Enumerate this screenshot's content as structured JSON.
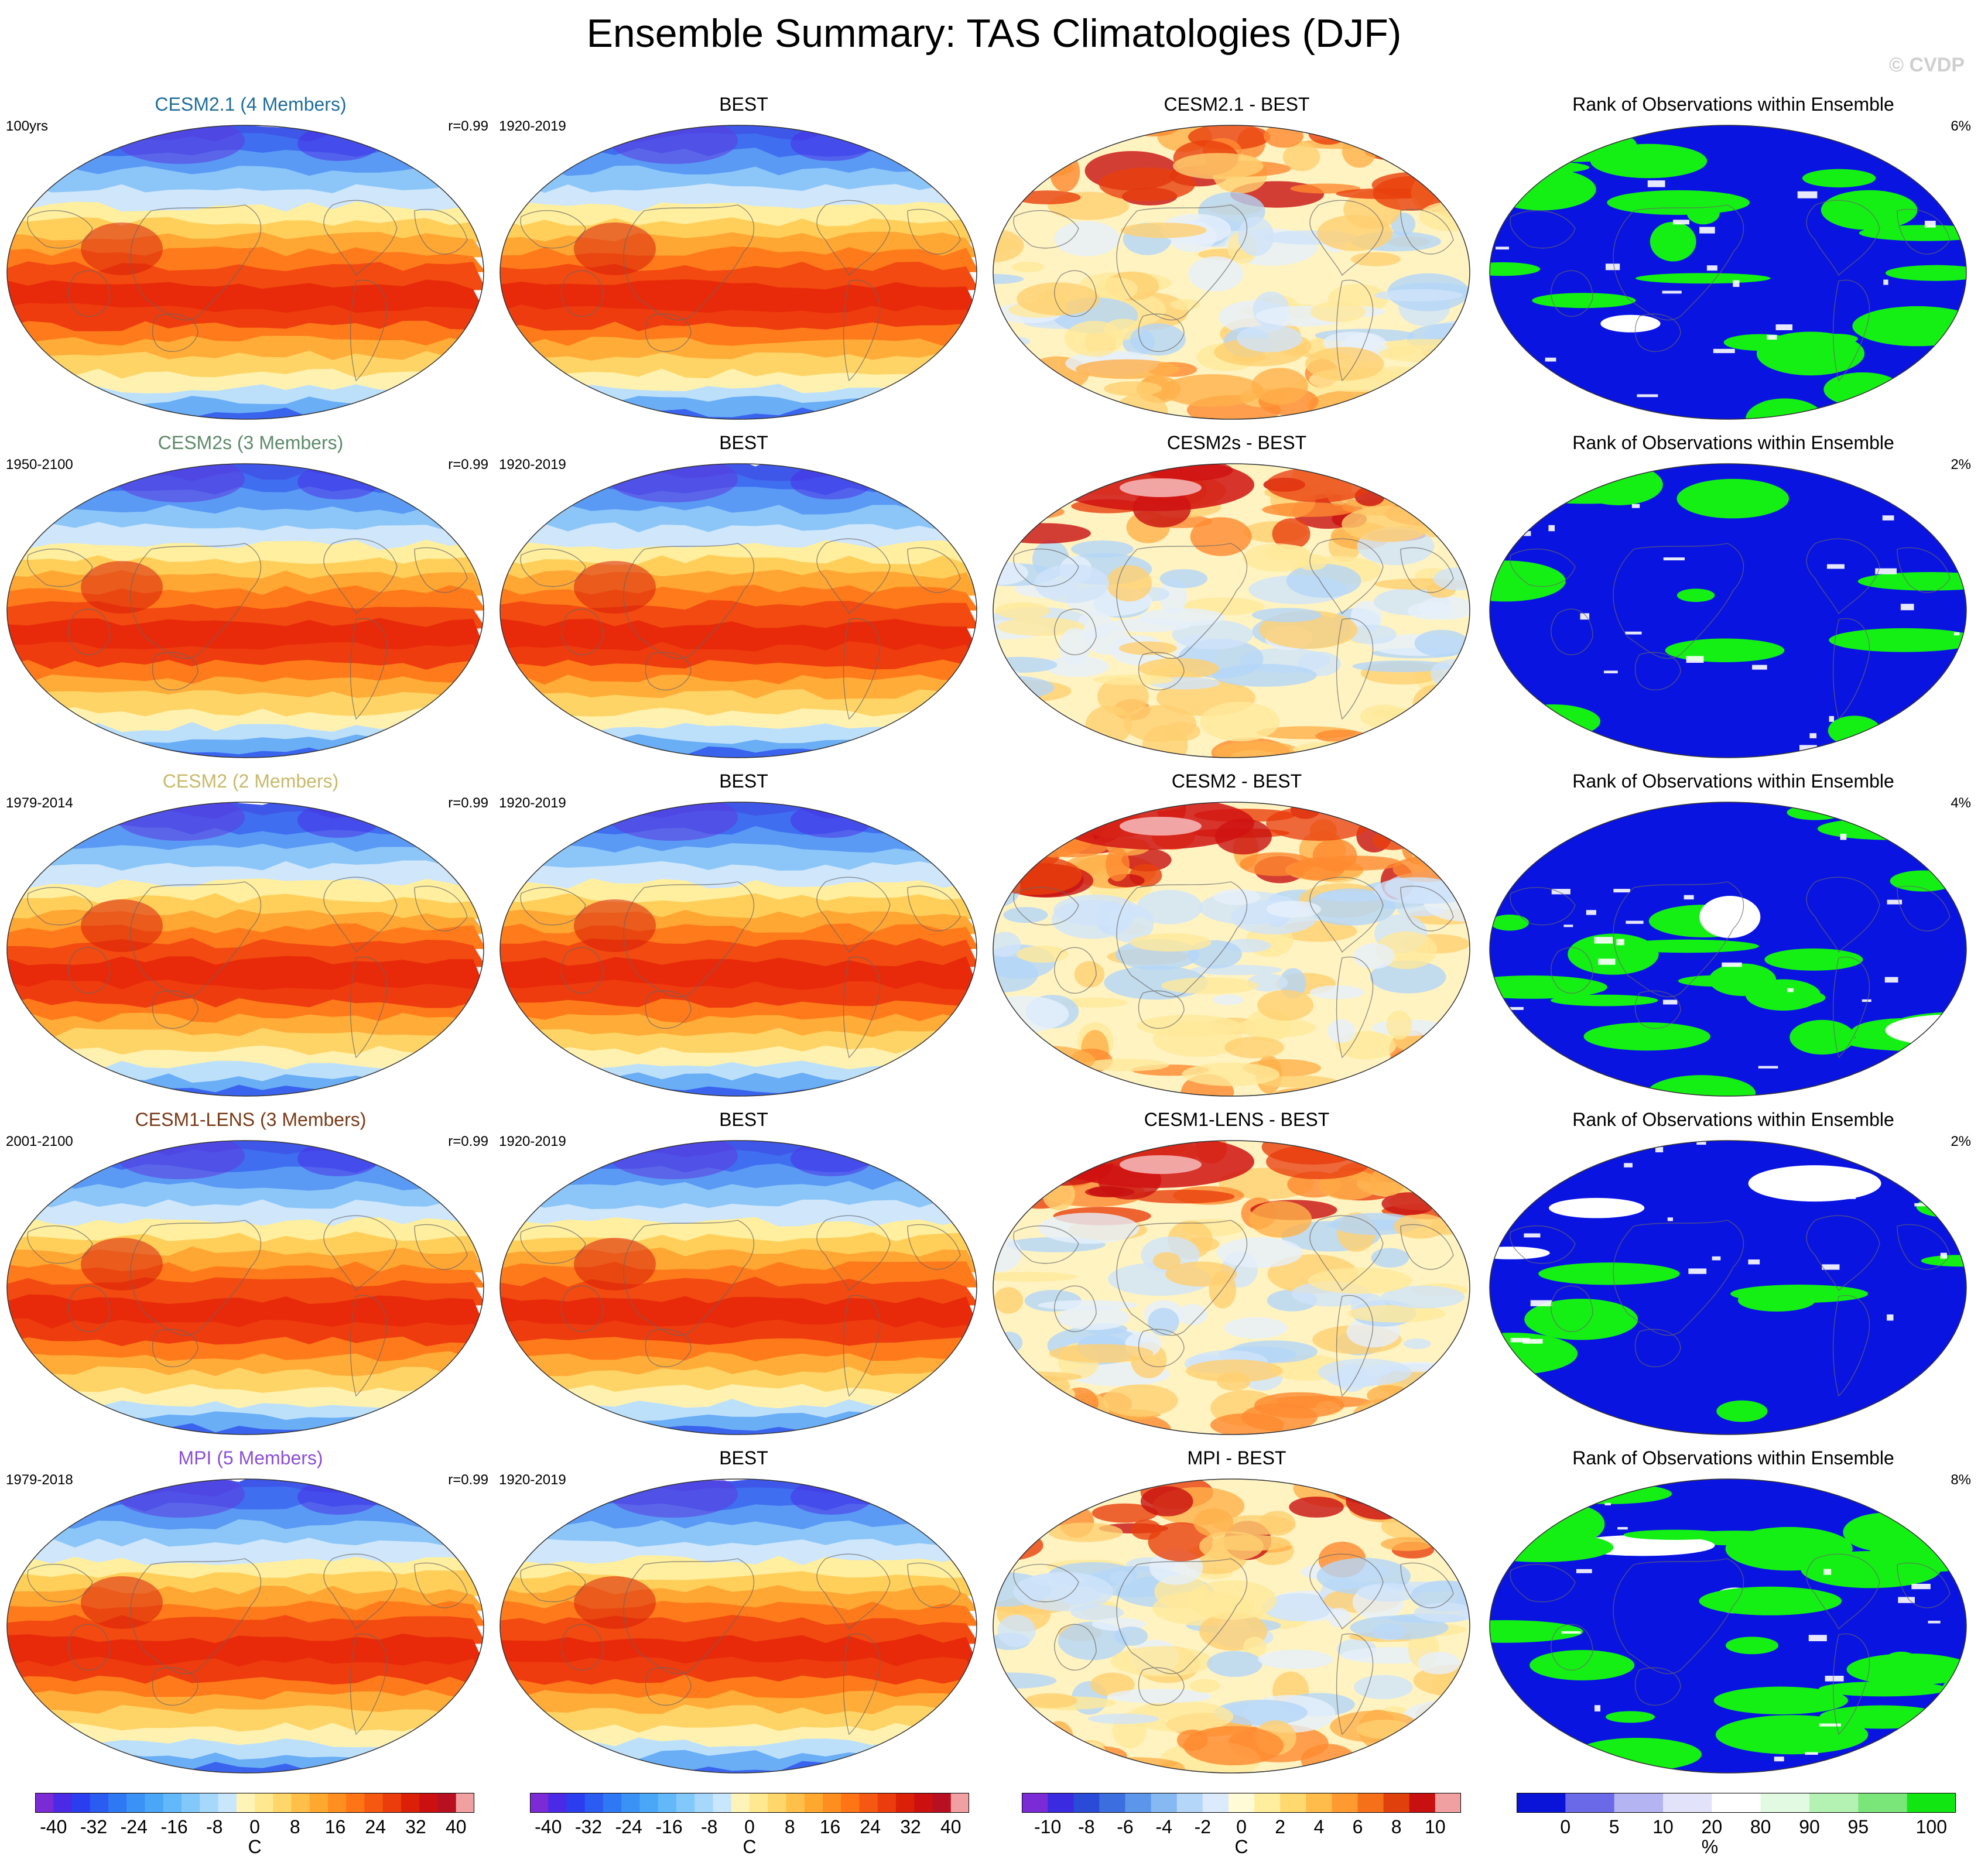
{
  "header": {
    "title": "Ensemble Summary: TAS Climatologies (DJF)",
    "copyright": "© CVDP"
  },
  "rows": [
    {
      "model_title": "CESM2.1 (4 Members)",
      "model_color": "#1f6e9a",
      "model_period": "100yrs",
      "r_value": "r=0.99",
      "obs_title": "BEST",
      "obs_period": "1920-2019",
      "diff_title": "CESM2.1 - BEST",
      "rank_title": "Rank of Observations within Ensemble",
      "rank_pct": "6%"
    },
    {
      "model_title": "CESM2s (3 Members)",
      "model_color": "#5d8a6a",
      "model_period": "1950-2100",
      "r_value": "r=0.99",
      "obs_title": "BEST",
      "obs_period": "1920-2019",
      "diff_title": "CESM2s - BEST",
      "rank_title": "Rank of Observations within Ensemble",
      "rank_pct": "2%"
    },
    {
      "model_title": "CESM2 (2 Members)",
      "model_color": "#c8b96a",
      "model_period": "1979-2014",
      "r_value": "r=0.99",
      "obs_title": "BEST",
      "obs_period": "1920-2019",
      "diff_title": "CESM2 - BEST",
      "rank_title": "Rank of Observations within Ensemble",
      "rank_pct": "4%"
    },
    {
      "model_title": "CESM1-LENS (3 Members)",
      "model_color": "#7a3a16",
      "model_period": "2001-2100",
      "r_value": "r=0.99",
      "obs_title": "BEST",
      "obs_period": "1920-2019",
      "diff_title": "CESM1-LENS - BEST",
      "rank_title": "Rank of Observations within Ensemble",
      "rank_pct": "2%"
    },
    {
      "model_title": "MPI (5 Members)",
      "model_color": "#8a4fd6",
      "model_period": "1979-2018",
      "r_value": "r=0.99",
      "obs_title": "BEST",
      "obs_period": "1920-2019",
      "diff_title": "MPI - BEST",
      "rank_title": "Rank of Observations within Ensemble",
      "rank_pct": "8%"
    }
  ],
  "colorbars": {
    "temperature": {
      "ticks": [
        "-40",
        "-32",
        "-24",
        "-16",
        "-8",
        "0",
        "8",
        "16",
        "24",
        "32",
        "40"
      ],
      "unit": "C",
      "colors": [
        "#7a2bd6",
        "#4a2ae6",
        "#2a3ef0",
        "#2a5cf2",
        "#2f78f4",
        "#3a92f6",
        "#4aa6f6",
        "#62b8f8",
        "#82c8fa",
        "#a6d8fb",
        "#c8e6fc",
        "#fff4b8",
        "#ffe890",
        "#ffd66a",
        "#ffc04a",
        "#ffa830",
        "#ff8e20",
        "#ff7414",
        "#f55810",
        "#ea3c0c",
        "#dc2008",
        "#cc1010",
        "#b81020",
        "#f0a0a0"
      ]
    },
    "difference": {
      "ticks": [
        "-10",
        "-8",
        "-6",
        "-4",
        "-2",
        "0",
        "2",
        "4",
        "6",
        "8",
        "10"
      ],
      "unit": "C",
      "colors": [
        "#7a2bd6",
        "#3a2ae0",
        "#2a4ad8",
        "#3c6ee0",
        "#5c96ea",
        "#86b8f2",
        "#b4d6f8",
        "#dcebfb",
        "#fffbd6",
        "#ffee9e",
        "#ffd870",
        "#ffbc4a",
        "#ff9a30",
        "#f57018",
        "#e0400c",
        "#c81010",
        "#f0a0a0"
      ]
    },
    "rank": {
      "ticks": [
        "0",
        "5",
        "10",
        "20",
        "80",
        "90",
        "95",
        "100"
      ],
      "unit": "%",
      "colors": [
        "#0a14d8",
        "#6a6ae8",
        "#b4b4f2",
        "#e2e2fa",
        "#ffffff",
        "#e2fae2",
        "#b4f2b4",
        "#7ae67a",
        "#12e612"
      ]
    }
  }
}
